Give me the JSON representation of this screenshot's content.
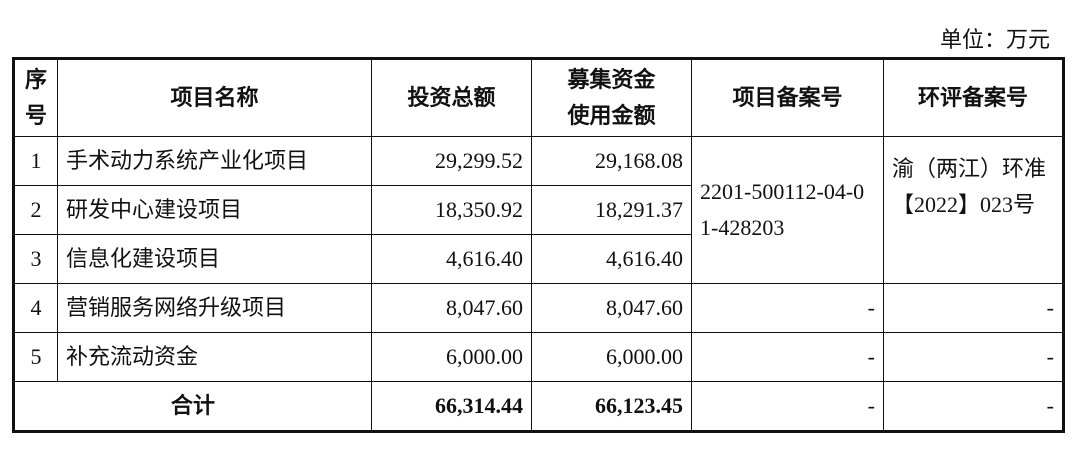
{
  "unit": "单位：万元",
  "headers": [
    "序号",
    "项目名称",
    "投资总额",
    "募集资金使用金额",
    "项目备案号",
    "环评备案号"
  ],
  "rows": [
    {
      "no": "1",
      "name": "手术动力系统产业化项目",
      "total": "29,299.52",
      "raised": "29,168.08"
    },
    {
      "no": "2",
      "name": "研发中心建设项目",
      "total": "18,350.92",
      "raised": "18,291.37"
    },
    {
      "no": "3",
      "name": "信息化建设项目",
      "total": "4,616.40",
      "raised": "4,616.40"
    },
    {
      "no": "4",
      "name": "营销服务网络升级项目",
      "total": "8,047.60",
      "raised": "8,047.60",
      "filing": "-",
      "eia": "-"
    },
    {
      "no": "5",
      "name": "补充流动资金",
      "total": "6,000.00",
      "raised": "6,000.00",
      "filing": "-",
      "eia": "-"
    }
  ],
  "merged": {
    "filing": "2201-500112-04-01-428203",
    "eia": "渝（两江）环准【2022】023号"
  },
  "total": {
    "label": "合计",
    "total": "66,314.44",
    "raised": "66,123.45",
    "filing": "-",
    "eia": "-"
  }
}
